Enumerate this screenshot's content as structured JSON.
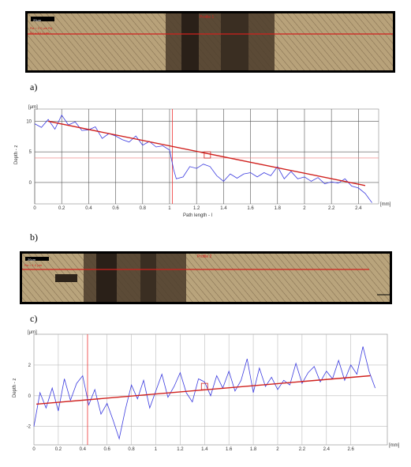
{
  "figure": {
    "panel_labels": [
      "a)",
      "b)",
      "c)"
    ]
  },
  "images": [
    {
      "scale_label": "20μm",
      "overlay_title": "Profile 1",
      "overlay_lines": [
        "Ra = 2.0 μm  Rq",
        "Rz = 10.1 μm"
      ],
      "colors": {
        "metal": "#b8a27a",
        "wear": "#4a3b2a",
        "profile_line": "#d0201d"
      }
    },
    {
      "scale_label": "20μm",
      "overlay_title": "Profile 2",
      "overlay_lines": [
        "Ra = 1.2 μm"
      ],
      "colors": {
        "metal": "#b9a47c",
        "wear": "#4b3c2b",
        "profile_line": "#d0201d"
      }
    }
  ],
  "chart_data": [
    {
      "type": "line",
      "title": "",
      "xlabel": "Path length - l",
      "ylabel": "Depth - z",
      "y_unit": "[μm]",
      "x_unit": "[mm]",
      "xlim": [
        0,
        2.55
      ],
      "ylim": [
        -3.5,
        12
      ],
      "x_ticks": [
        0,
        0.2,
        0.4,
        0.6,
        0.8,
        1,
        1.2,
        1.4,
        1.6,
        1.8,
        2,
        2.2,
        2.4
      ],
      "y_ticks": [
        0,
        5,
        10
      ],
      "grid": true,
      "marker_x": 1.02,
      "ref_y": 4,
      "fit_line": {
        "x": [
          0.1,
          2.45
        ],
        "y": [
          10.0,
          -0.5
        ]
      },
      "box_marker": {
        "x": 1.28,
        "y": 4.5
      },
      "series": [
        {
          "x": [
            0,
            0.05,
            0.1,
            0.15,
            0.2,
            0.25,
            0.3,
            0.35,
            0.4,
            0.45,
            0.5,
            0.55,
            0.6,
            0.65,
            0.7,
            0.75,
            0.8,
            0.85,
            0.9,
            0.95,
            1.0,
            1.03,
            1.05,
            1.1,
            1.15,
            1.2,
            1.25,
            1.3,
            1.35,
            1.4,
            1.45,
            1.5,
            1.55,
            1.6,
            1.65,
            1.7,
            1.75,
            1.8,
            1.85,
            1.9,
            1.95,
            2.0,
            2.05,
            2.1,
            2.15,
            2.2,
            2.25,
            2.3,
            2.35,
            2.4,
            2.45,
            2.5
          ],
          "y": [
            9.6,
            9.0,
            10.3,
            8.7,
            11.0,
            9.4,
            9.9,
            8.5,
            8.6,
            9.1,
            7.2,
            8.0,
            7.6,
            7.0,
            6.6,
            7.6,
            6.1,
            6.7,
            5.8,
            6.0,
            5.3,
            2.1,
            0.6,
            0.9,
            2.6,
            2.3,
            3.0,
            2.6,
            1.1,
            0.2,
            1.4,
            0.7,
            1.4,
            1.6,
            0.9,
            1.6,
            1.1,
            2.6,
            0.6,
            1.8,
            0.6,
            0.9,
            0.2,
            0.8,
            -0.2,
            0.1,
            -0.1,
            0.6,
            -0.6,
            -0.9,
            -1.8,
            -3.3
          ],
          "color": "#3a3adf"
        }
      ]
    },
    {
      "type": "line",
      "title": "",
      "xlabel": "",
      "ylabel": "Depth - z",
      "y_unit": "[μm]",
      "x_unit": "[mm]",
      "xlim": [
        0,
        2.9
      ],
      "ylim": [
        -3.2,
        4
      ],
      "x_ticks": [
        0,
        0.2,
        0.4,
        0.6,
        0.8,
        1,
        1.2,
        1.4,
        1.6,
        1.8,
        2,
        2.2,
        2.4,
        2.6
      ],
      "y_ticks": [
        -2,
        0,
        2
      ],
      "grid": true,
      "marker_x": 0.44,
      "fit_line": {
        "x": [
          0.02,
          2.76
        ],
        "y": [
          -0.55,
          1.3
        ]
      },
      "box_marker": {
        "x": 1.4,
        "y": 0.6
      },
      "series": [
        {
          "x": [
            0,
            0.05,
            0.1,
            0.15,
            0.2,
            0.25,
            0.3,
            0.35,
            0.4,
            0.45,
            0.5,
            0.55,
            0.6,
            0.65,
            0.7,
            0.75,
            0.8,
            0.85,
            0.9,
            0.95,
            1.0,
            1.05,
            1.1,
            1.15,
            1.2,
            1.25,
            1.3,
            1.35,
            1.4,
            1.45,
            1.5,
            1.55,
            1.6,
            1.65,
            1.7,
            1.75,
            1.8,
            1.85,
            1.9,
            1.95,
            2.0,
            2.05,
            2.1,
            2.15,
            2.2,
            2.25,
            2.3,
            2.35,
            2.4,
            2.45,
            2.5,
            2.55,
            2.6,
            2.65,
            2.7,
            2.75,
            2.8
          ],
          "y": [
            -2.0,
            0.2,
            -0.8,
            0.5,
            -1.0,
            1.1,
            -0.3,
            0.8,
            1.3,
            -0.6,
            0.4,
            -1.2,
            -0.5,
            -1.6,
            -2.8,
            -0.9,
            0.7,
            -0.2,
            1.0,
            -0.8,
            0.3,
            1.4,
            -0.1,
            0.6,
            1.5,
            0.2,
            -0.4,
            1.1,
            0.9,
            0.0,
            1.3,
            0.5,
            1.6,
            0.3,
            1.0,
            2.4,
            0.2,
            1.8,
            0.6,
            1.2,
            0.4,
            1.0,
            0.7,
            2.1,
            0.8,
            1.5,
            1.9,
            0.9,
            1.6,
            1.1,
            2.3,
            1.0,
            2.0,
            1.4,
            3.2,
            1.6,
            0.5
          ],
          "color": "#3a3adf"
        }
      ]
    }
  ]
}
